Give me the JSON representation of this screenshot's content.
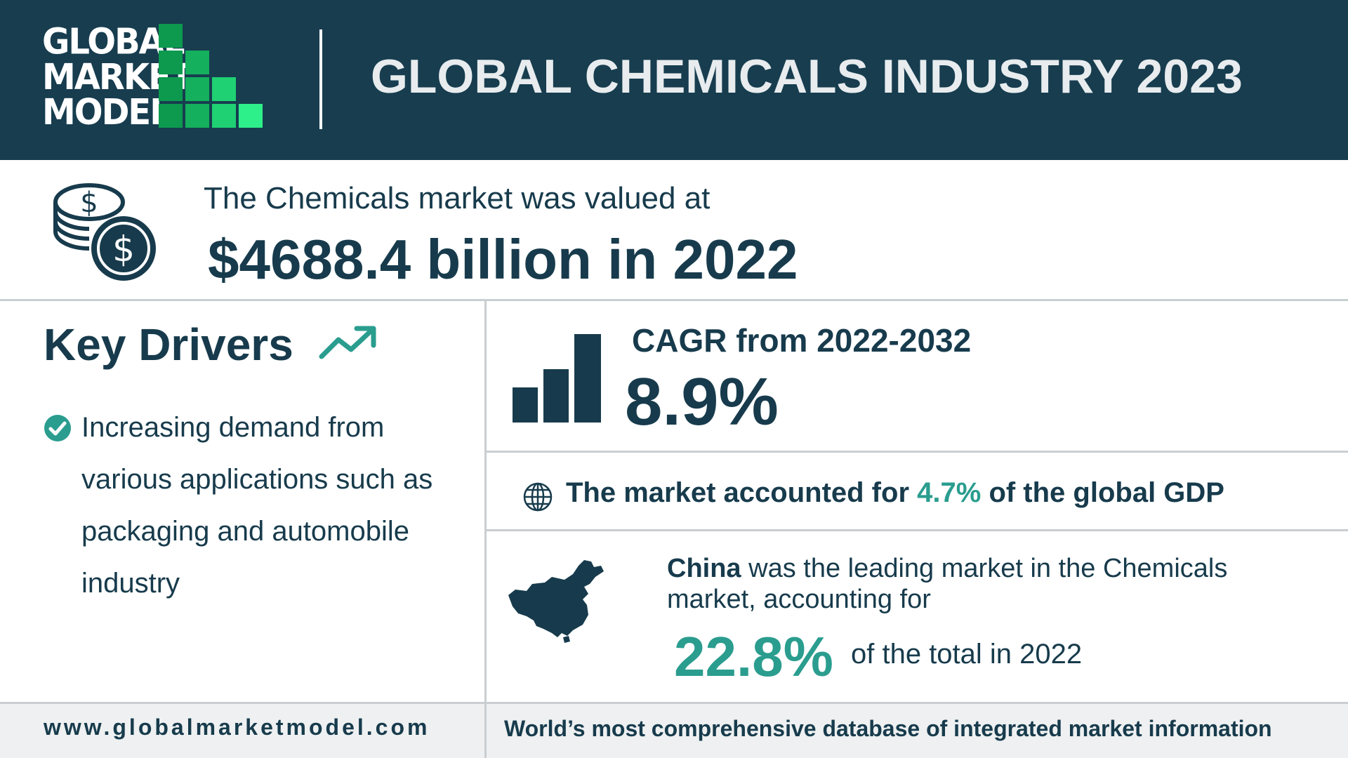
{
  "header": {
    "logo_lines": [
      "GLOBAL",
      "MARKET",
      "MODEL"
    ],
    "title": "GLOBAL CHEMICALS INDUSTRY 2023"
  },
  "valuation": {
    "line1": "The Chemicals market was valued at",
    "line2": "$4688.4 billion in 2022",
    "icon": "money-coins-icon"
  },
  "key_drivers": {
    "title": "Key Drivers",
    "icon": "trend-up-icon",
    "items": [
      "Increasing demand from various applications such as packaging and automobile industry"
    ]
  },
  "cagr": {
    "label": "CAGR from 2022-2032",
    "value": "8.9%",
    "icon": "bar-chart-icon"
  },
  "gdp": {
    "prefix": "The market accounted for",
    "value": "4.7%",
    "suffix": "of the global GDP",
    "icon": "globe-icon"
  },
  "leading_market": {
    "country": "China",
    "text": "was the leading market in the Chemicals market, accounting for",
    "value": "22.8%",
    "tail": "of the total in 2022",
    "icon": "china-map-icon"
  },
  "footer": {
    "url": "www.globalmarketmodel.com",
    "tagline": "World’s most comprehensive database of integrated market information"
  },
  "colors": {
    "header_bg": "#173d4f",
    "text": "#173b4c",
    "accent": "#2a9d8f",
    "logo_green_dark": "#0e9f52",
    "logo_green_light": "#2ef08a"
  }
}
